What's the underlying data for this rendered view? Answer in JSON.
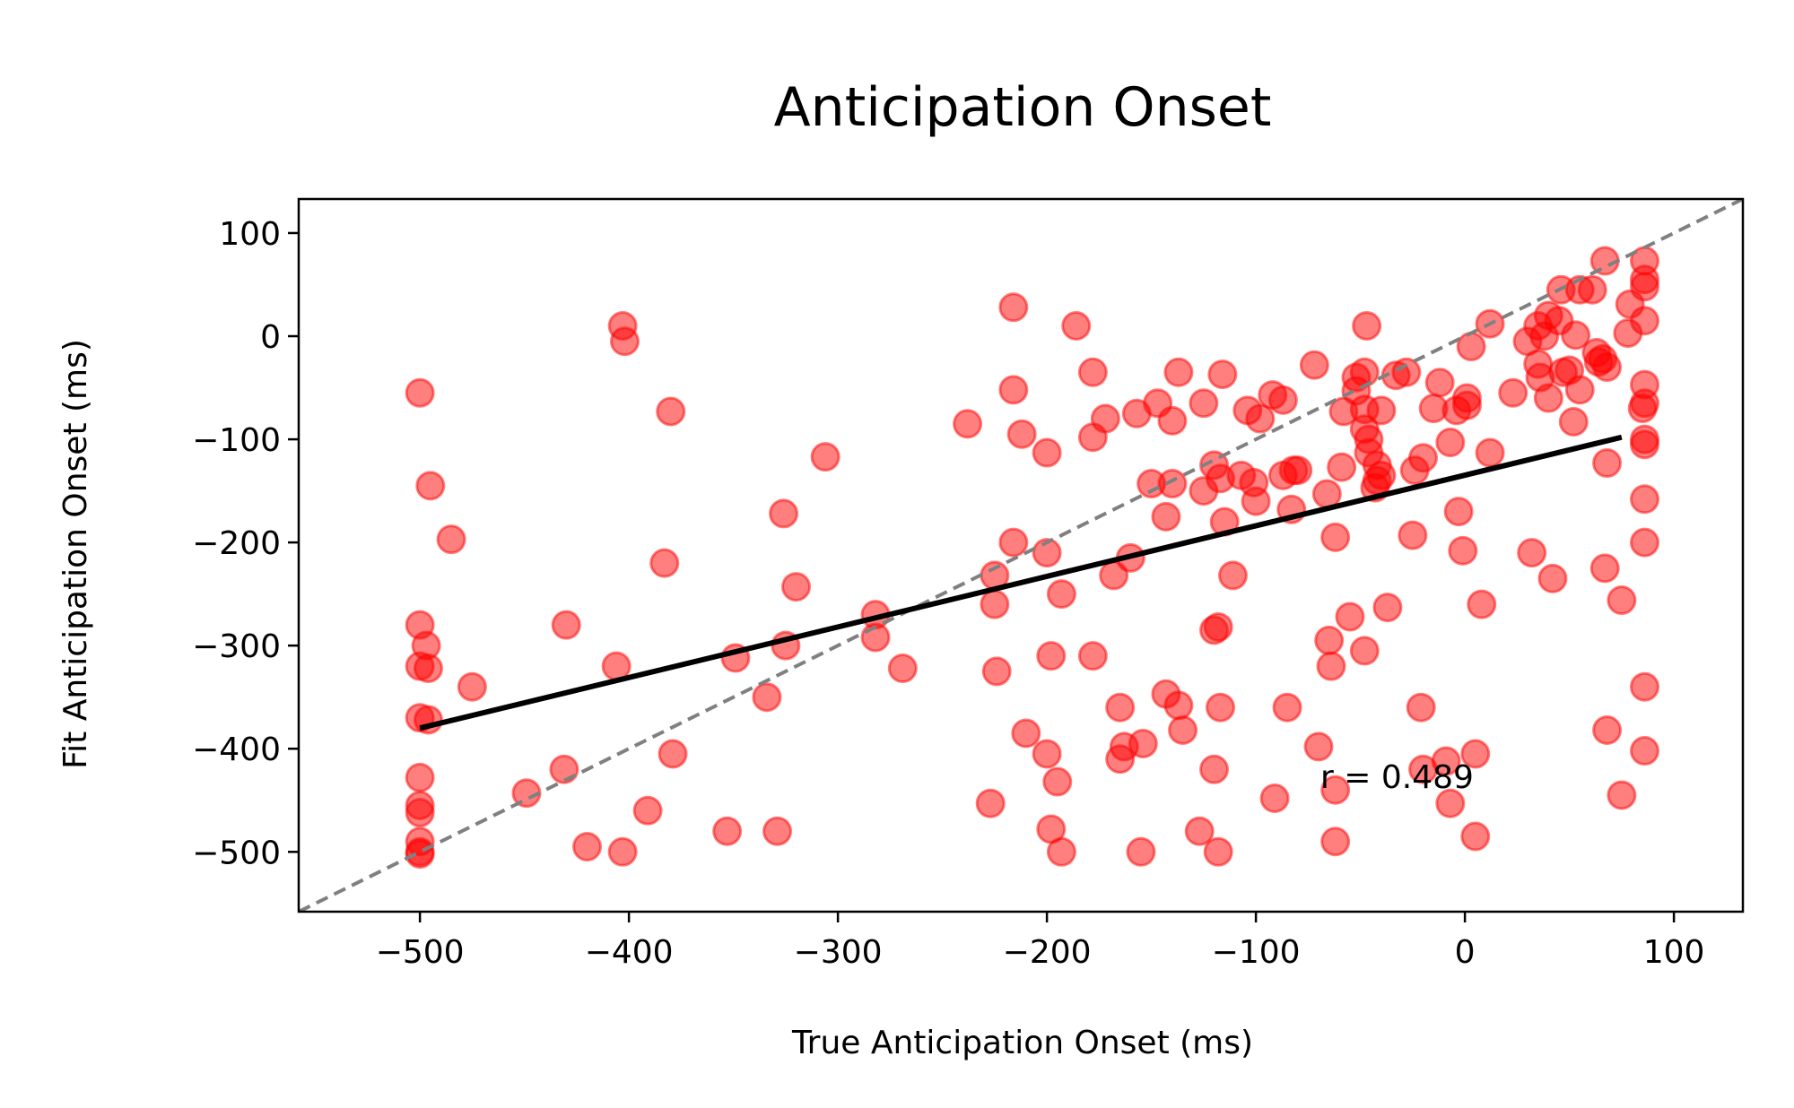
{
  "chart_data": {
    "type": "scatter",
    "title": "Anticipation Onset",
    "xlabel": "True Anticipation Onset (ms)",
    "ylabel": "Fit Anticipation Onset (ms)",
    "xlim": [
      -558,
      133
    ],
    "ylim": [
      -558,
      133
    ],
    "xticks": [
      -500,
      -400,
      -300,
      -200,
      -100,
      0,
      100
    ],
    "yticks": [
      -500,
      -400,
      -300,
      -200,
      -100,
      0,
      100
    ],
    "xtick_labels": [
      "−500",
      "−400",
      "−300",
      "−200",
      "−100",
      "0",
      "100"
    ],
    "ytick_labels": [
      "−500",
      "−400",
      "−300",
      "−200",
      "−100",
      "0",
      "100"
    ],
    "grid": false,
    "annotation": "r = 0.489",
    "colors": {
      "points": "#ff0000",
      "fit_line": "#000000",
      "identity_line": "#808080"
    },
    "fit_line": {
      "x": [
        -500,
        75
      ],
      "y": [
        -380,
        -98
      ]
    },
    "identity_line": {
      "x": [
        -558,
        133
      ],
      "y": [
        -558,
        133
      ]
    },
    "points": [
      [
        -500,
        -55
      ],
      [
        -495,
        -145
      ],
      [
        -485,
        -197
      ],
      [
        -497,
        -300
      ],
      [
        -500,
        -280
      ],
      [
        -500,
        -320
      ],
      [
        -496,
        -322
      ],
      [
        -500,
        -370
      ],
      [
        -496,
        -372
      ],
      [
        -475,
        -340
      ],
      [
        -500,
        -428
      ],
      [
        -500,
        -455
      ],
      [
        -500,
        -462
      ],
      [
        -500,
        -490
      ],
      [
        -500,
        -500
      ],
      [
        -500,
        -502
      ],
      [
        -449,
        -443
      ],
      [
        -431,
        -420
      ],
      [
        -430,
        -280
      ],
      [
        -420,
        -495
      ],
      [
        -406,
        -320
      ],
      [
        -403,
        10
      ],
      [
        -402,
        -5
      ],
      [
        -403,
        -500
      ],
      [
        -391,
        -460
      ],
      [
        -383,
        -220
      ],
      [
        -380,
        -73
      ],
      [
        -379,
        -405
      ],
      [
        -353,
        -480
      ],
      [
        -349,
        -312
      ],
      [
        -334,
        -350
      ],
      [
        -329,
        -480
      ],
      [
        -326,
        -172
      ],
      [
        -325,
        -300
      ],
      [
        -320,
        -243
      ],
      [
        -306,
        -117
      ],
      [
        -282,
        -292
      ],
      [
        -282,
        -270
      ],
      [
        -269,
        -322
      ],
      [
        -238,
        -85
      ],
      [
        -227,
        -453
      ],
      [
        -225,
        -232
      ],
      [
        -225,
        -260
      ],
      [
        -224,
        -325
      ],
      [
        -216,
        -52
      ],
      [
        -216,
        28
      ],
      [
        -216,
        -200
      ],
      [
        -212,
        -95
      ],
      [
        -210,
        -385
      ],
      [
        -200,
        -210
      ],
      [
        -200,
        -113
      ],
      [
        -200,
        -405
      ],
      [
        -198,
        -478
      ],
      [
        -198,
        -310
      ],
      [
        -195,
        -432
      ],
      [
        -193,
        -250
      ],
      [
        -193,
        -500
      ],
      [
        -186,
        10
      ],
      [
        -178,
        -35
      ],
      [
        -178,
        -98
      ],
      [
        -178,
        -310
      ],
      [
        -172,
        -80
      ],
      [
        -168,
        -232
      ],
      [
        -165,
        -410
      ],
      [
        -165,
        -360
      ],
      [
        -163,
        -398
      ],
      [
        -160,
        -215
      ],
      [
        -157,
        -75
      ],
      [
        -155,
        -500
      ],
      [
        -154,
        -395
      ],
      [
        -150,
        -143
      ],
      [
        -147,
        -65
      ],
      [
        -143,
        -175
      ],
      [
        -140,
        -82
      ],
      [
        -140,
        -143
      ],
      [
        -137,
        -35
      ],
      [
        -143,
        -347
      ],
      [
        -137,
        -358
      ],
      [
        -135,
        -382
      ],
      [
        -127,
        -480
      ],
      [
        -125,
        -65
      ],
      [
        -125,
        -150
      ],
      [
        -120,
        -285
      ],
      [
        -118,
        -282
      ],
      [
        -120,
        -125
      ],
      [
        -120,
        -420
      ],
      [
        -118,
        -500
      ],
      [
        -117,
        -138
      ],
      [
        -117,
        -360
      ],
      [
        -115,
        -180
      ],
      [
        -116,
        -37
      ],
      [
        -111,
        -232
      ],
      [
        -107,
        -135
      ],
      [
        -104,
        -72
      ],
      [
        -101,
        -142
      ],
      [
        -100,
        -160
      ],
      [
        -98,
        -80
      ],
      [
        -92,
        -57
      ],
      [
        -91,
        -448
      ],
      [
        -87,
        -135
      ],
      [
        -87,
        -62
      ],
      [
        -85,
        -360
      ],
      [
        -82,
        -130
      ],
      [
        -83,
        -168
      ],
      [
        -80,
        -130
      ],
      [
        -72,
        -28
      ],
      [
        -70,
        -398
      ],
      [
        -66,
        -153
      ],
      [
        -65,
        -295
      ],
      [
        -64,
        -320
      ],
      [
        -62,
        -195
      ],
      [
        -62,
        -440
      ],
      [
        -62,
        -490
      ],
      [
        -59,
        -127
      ],
      [
        -58,
        -73
      ],
      [
        -55,
        -272
      ],
      [
        -52,
        -53
      ],
      [
        -52,
        -40
      ],
      [
        -48,
        -71
      ],
      [
        -48,
        -35
      ],
      [
        -48,
        -90
      ],
      [
        -48,
        -305
      ],
      [
        -47,
        10
      ],
      [
        -46,
        -100
      ],
      [
        -46,
        -113
      ],
      [
        -43,
        -147
      ],
      [
        -42,
        -140
      ],
      [
        -42,
        -125
      ],
      [
        -40,
        -72
      ],
      [
        -40,
        -135
      ],
      [
        -37,
        -263
      ],
      [
        -33,
        -38
      ],
      [
        -28,
        -35
      ],
      [
        -25,
        -193
      ],
      [
        -24,
        -130
      ],
      [
        -21,
        -360
      ],
      [
        -20,
        -420
      ],
      [
        -20,
        -118
      ],
      [
        -15,
        -70
      ],
      [
        -12,
        -45
      ],
      [
        -9,
        -412
      ],
      [
        -7,
        -103
      ],
      [
        -7,
        -453
      ],
      [
        -4,
        -72
      ],
      [
        -1,
        -208
      ],
      [
        -3,
        -170
      ],
      [
        1,
        -60
      ],
      [
        3,
        -10
      ],
      [
        1,
        -67
      ],
      [
        5,
        -405
      ],
      [
        5,
        -485
      ],
      [
        8,
        -260
      ],
      [
        12,
        12
      ],
      [
        12,
        -113
      ],
      [
        23,
        -55
      ],
      [
        30,
        -5
      ],
      [
        32,
        -210
      ],
      [
        35,
        10
      ],
      [
        35,
        -27
      ],
      [
        36,
        -40
      ],
      [
        38,
        0
      ],
      [
        40,
        20
      ],
      [
        40,
        -60
      ],
      [
        42,
        -235
      ],
      [
        45,
        15
      ],
      [
        46,
        45
      ],
      [
        47,
        -35
      ],
      [
        50,
        -33
      ],
      [
        52,
        -83
      ],
      [
        53,
        1
      ],
      [
        55,
        -52
      ],
      [
        55,
        45
      ],
      [
        61,
        45
      ],
      [
        63,
        -16
      ],
      [
        64,
        -25
      ],
      [
        66,
        -22
      ],
      [
        67,
        -225
      ],
      [
        67,
        73
      ],
      [
        68,
        -382
      ],
      [
        68,
        -30
      ],
      [
        68,
        -123
      ],
      [
        75,
        -256
      ],
      [
        75,
        -445
      ],
      [
        78,
        3
      ],
      [
        79,
        31
      ],
      [
        85,
        -70
      ],
      [
        86,
        -402
      ],
      [
        86,
        73
      ],
      [
        86,
        55
      ],
      [
        86,
        48
      ],
      [
        86,
        15
      ],
      [
        86,
        -47
      ],
      [
        86,
        -65
      ],
      [
        86,
        -100
      ],
      [
        86,
        -105
      ],
      [
        86,
        -158
      ],
      [
        86,
        -200
      ],
      [
        86,
        -340
      ]
    ]
  }
}
